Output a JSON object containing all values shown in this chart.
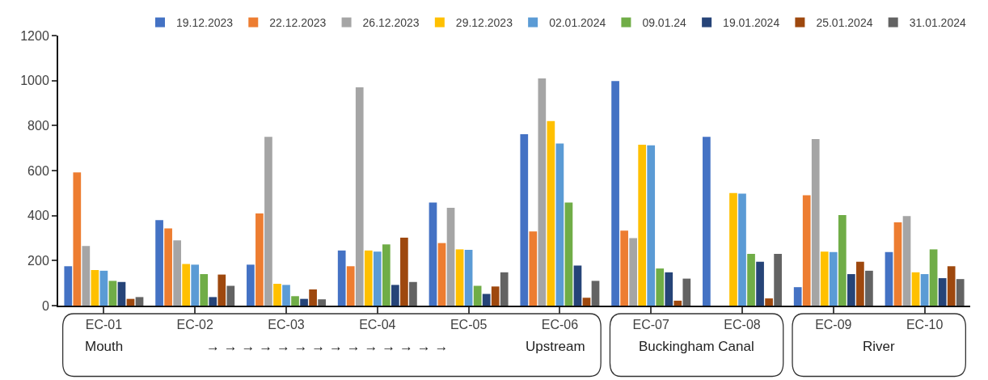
{
  "chart_data": {
    "type": "bar",
    "categories": [
      "EC-01",
      "EC-02",
      "EC-03",
      "EC-04",
      "EC-05",
      "EC-06",
      "EC-07",
      "EC-08",
      "EC-09",
      "EC-10"
    ],
    "series": [
      {
        "name": "19.12.2023",
        "color": "#4472c4",
        "values": [
          175,
          380,
          182,
          245,
          458,
          762,
          998,
          750,
          82,
          238
        ]
      },
      {
        "name": "22.12.2023",
        "color": "#ed7d31",
        "values": [
          592,
          343,
          410,
          175,
          278,
          330,
          333,
          null,
          490,
          370
        ]
      },
      {
        "name": "26.12.2023",
        "color": "#a5a5a5",
        "values": [
          265,
          290,
          750,
          970,
          435,
          1010,
          300,
          null,
          740,
          398
        ]
      },
      {
        "name": "29.12.2023",
        "color": "#ffc000",
        "values": [
          158,
          185,
          97,
          245,
          250,
          820,
          715,
          500,
          240,
          148
        ]
      },
      {
        "name": "02.01.2024",
        "color": "#5b9bd5",
        "values": [
          155,
          182,
          92,
          240,
          248,
          720,
          712,
          498,
          238,
          140
        ]
      },
      {
        "name": "09.01.24",
        "color": "#70ad47",
        "values": [
          110,
          140,
          42,
          272,
          88,
          458,
          165,
          230,
          402,
          250
        ]
      },
      {
        "name": "19.01.2024",
        "color": "#264478",
        "values": [
          105,
          38,
          30,
          92,
          52,
          178,
          148,
          195,
          140,
          122
        ]
      },
      {
        "name": "25.01.2024",
        "color": "#9e480e",
        "values": [
          30,
          138,
          72,
          302,
          85,
          35,
          22,
          32,
          195,
          175
        ]
      },
      {
        "name": "31.01.2024",
        "color": "#636363",
        "values": [
          38,
          88,
          28,
          105,
          148,
          110,
          120,
          230,
          155,
          118
        ]
      }
    ],
    "ylim": [
      0,
      1200
    ],
    "yticks": [
      0,
      200,
      400,
      600,
      800,
      1000,
      1200
    ],
    "grid": false,
    "legend": "top",
    "annotations": [
      "Mouth",
      "→ → → → → → → → → → → → → →",
      "Upstream",
      "Buckingham Canal",
      "River"
    ]
  }
}
